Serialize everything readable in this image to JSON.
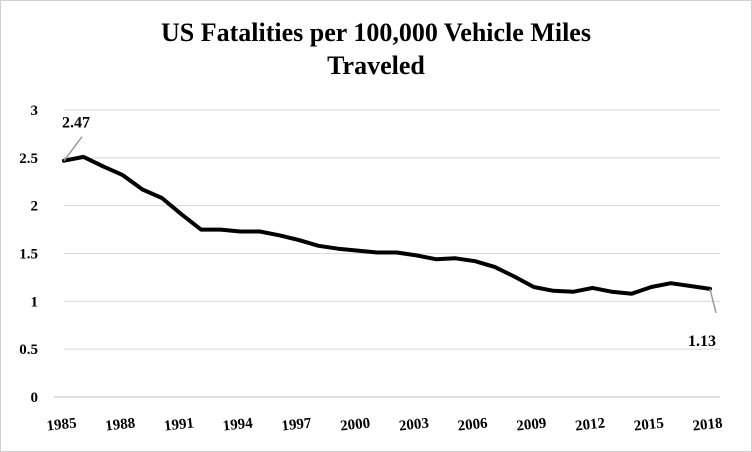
{
  "chart_data": {
    "type": "line",
    "title_line1": "US Fatalities per 100,000 Vehicle Miles",
    "title_line2": "Traveled",
    "xlabel": "",
    "ylabel": "",
    "ylim": [
      0,
      3
    ],
    "yticks": [
      "0",
      "0.5",
      "1",
      "1.5",
      "2",
      "2.5",
      "3"
    ],
    "xticks": [
      "1985",
      "1988",
      "1991",
      "1994",
      "1997",
      "2000",
      "2003",
      "2006",
      "2009",
      "2012",
      "2015",
      "2018"
    ],
    "grid": true,
    "legend": "none",
    "line_color": "#000000",
    "x": [
      1985,
      1986,
      1987,
      1988,
      1989,
      1990,
      1991,
      1992,
      1993,
      1994,
      1995,
      1996,
      1997,
      1998,
      1999,
      2000,
      2001,
      2002,
      2003,
      2004,
      2005,
      2006,
      2007,
      2008,
      2009,
      2010,
      2011,
      2012,
      2013,
      2014,
      2015,
      2016,
      2017,
      2018
    ],
    "values": [
      2.47,
      2.51,
      2.41,
      2.32,
      2.17,
      2.08,
      1.91,
      1.75,
      1.75,
      1.73,
      1.73,
      1.69,
      1.64,
      1.58,
      1.55,
      1.53,
      1.51,
      1.51,
      1.48,
      1.44,
      1.45,
      1.42,
      1.36,
      1.26,
      1.15,
      1.11,
      1.1,
      1.14,
      1.1,
      1.08,
      1.15,
      1.19,
      1.16,
      1.13
    ],
    "annotations": [
      {
        "year": 1985,
        "label": "2.47"
      },
      {
        "year": 2018,
        "label": "1.13"
      }
    ]
  }
}
